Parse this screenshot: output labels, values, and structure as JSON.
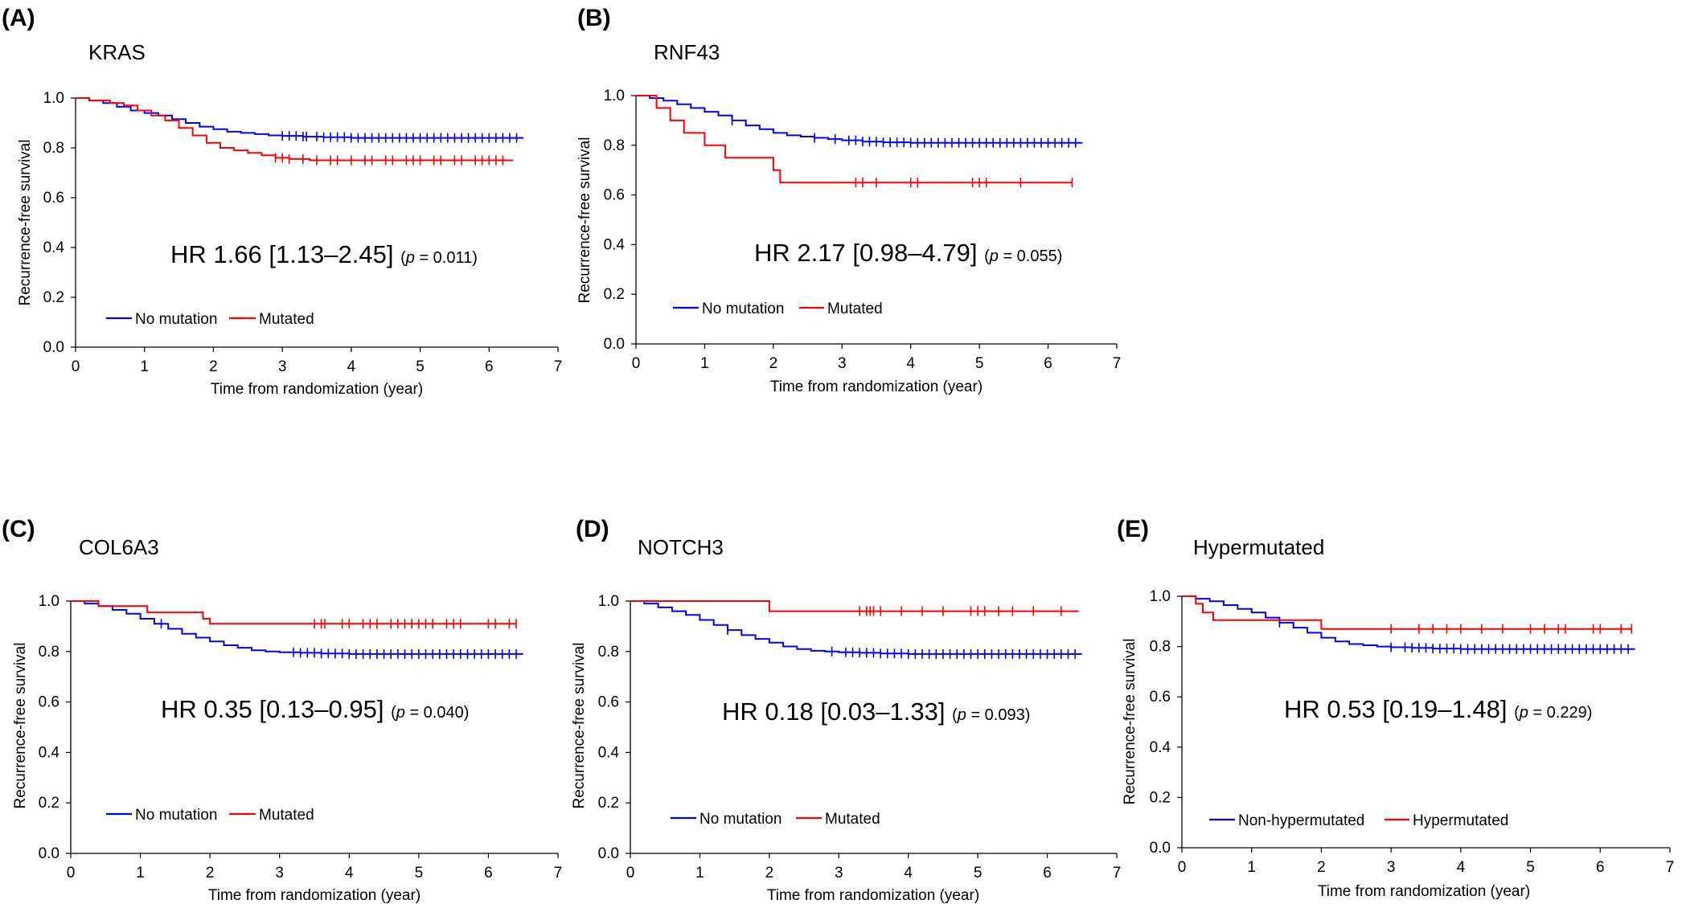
{
  "chart_data": [
    {
      "type": "line",
      "letter": "(A)",
      "title": "KRAS",
      "xlabel": "Time from randomization (year)",
      "ylabel": "Recurrence-free survival",
      "xlim": [
        0,
        7
      ],
      "ylim": [
        0,
        1
      ],
      "xticks": [
        "0",
        "1",
        "2",
        "3",
        "4",
        "5",
        "6",
        "7"
      ],
      "yticks": [
        "0.0",
        "0.2",
        "0.4",
        "0.6",
        "0.8",
        "1.0"
      ],
      "hr_text": "HR 1.66 [1.13–2.45]",
      "p_open": "(",
      "p_symbol": "p",
      "p_rest": " = 0.011)",
      "legend_position": "lower-left",
      "series": [
        {
          "name": "No mutation",
          "color": "#0000ff",
          "steps": [
            [
              0,
              1.0
            ],
            [
              0.2,
              0.99
            ],
            [
              0.4,
              0.98
            ],
            [
              0.6,
              0.965
            ],
            [
              0.8,
              0.95
            ],
            [
              1.0,
              0.94
            ],
            [
              1.2,
              0.93
            ],
            [
              1.4,
              0.915
            ],
            [
              1.6,
              0.9
            ],
            [
              1.8,
              0.885
            ],
            [
              2.0,
              0.875
            ],
            [
              2.2,
              0.865
            ],
            [
              2.4,
              0.86
            ],
            [
              2.6,
              0.855
            ],
            [
              2.8,
              0.85
            ],
            [
              3.0,
              0.848
            ],
            [
              3.3,
              0.845
            ],
            [
              3.6,
              0.843
            ],
            [
              4.0,
              0.84
            ],
            [
              6.5,
              0.84
            ]
          ],
          "censor_times": [
            3.0,
            3.1,
            3.2,
            3.3,
            3.35,
            3.5,
            3.6,
            3.7,
            3.8,
            3.9,
            4.0,
            4.1,
            4.2,
            4.3,
            4.4,
            4.5,
            4.6,
            4.7,
            4.8,
            4.9,
            5.0,
            5.1,
            5.2,
            5.3,
            5.4,
            5.5,
            5.6,
            5.7,
            5.8,
            5.9,
            6.0,
            6.1,
            6.2,
            6.3,
            6.4
          ]
        },
        {
          "name": "Mutated",
          "color": "#ff0000",
          "steps": [
            [
              0,
              1.0
            ],
            [
              0.2,
              0.99
            ],
            [
              0.5,
              0.98
            ],
            [
              0.7,
              0.97
            ],
            [
              0.9,
              0.95
            ],
            [
              1.1,
              0.93
            ],
            [
              1.3,
              0.91
            ],
            [
              1.5,
              0.88
            ],
            [
              1.7,
              0.85
            ],
            [
              1.9,
              0.82
            ],
            [
              2.1,
              0.8
            ],
            [
              2.3,
              0.79
            ],
            [
              2.5,
              0.78
            ],
            [
              2.7,
              0.77
            ],
            [
              2.9,
              0.76
            ],
            [
              3.1,
              0.755
            ],
            [
              3.4,
              0.75
            ],
            [
              6.35,
              0.75
            ]
          ],
          "censor_times": [
            2.9,
            3.0,
            3.1,
            3.3,
            3.5,
            3.7,
            3.8,
            4.0,
            4.2,
            4.3,
            4.5,
            4.6,
            4.8,
            4.9,
            5.0,
            5.2,
            5.3,
            5.5,
            5.6,
            5.8,
            5.9,
            6.0,
            6.1,
            6.2
          ]
        }
      ]
    },
    {
      "type": "line",
      "letter": "(B)",
      "title": "RNF43",
      "xlabel": "Time from randomization (year)",
      "ylabel": "Recurrence-free survival",
      "xlim": [
        0,
        7
      ],
      "ylim": [
        0,
        1
      ],
      "xticks": [
        "0",
        "1",
        "2",
        "3",
        "4",
        "5",
        "6",
        "7"
      ],
      "yticks": [
        "0.0",
        "0.2",
        "0.4",
        "0.6",
        "0.8",
        "1.0"
      ],
      "hr_text": "HR 2.17 [0.98–4.79]",
      "p_open": "(",
      "p_symbol": "p",
      "p_rest": " = 0.055)",
      "legend_position": "lower-left",
      "series": [
        {
          "name": "No mutation",
          "color": "#0000ff",
          "steps": [
            [
              0,
              1.0
            ],
            [
              0.2,
              0.99
            ],
            [
              0.4,
              0.98
            ],
            [
              0.6,
              0.965
            ],
            [
              0.8,
              0.95
            ],
            [
              1.0,
              0.935
            ],
            [
              1.2,
              0.92
            ],
            [
              1.4,
              0.9
            ],
            [
              1.6,
              0.88
            ],
            [
              1.8,
              0.865
            ],
            [
              2.0,
              0.85
            ],
            [
              2.2,
              0.84
            ],
            [
              2.4,
              0.835
            ],
            [
              2.6,
              0.83
            ],
            [
              2.8,
              0.825
            ],
            [
              3.0,
              0.82
            ],
            [
              3.3,
              0.815
            ],
            [
              3.6,
              0.812
            ],
            [
              4.0,
              0.81
            ],
            [
              6.5,
              0.81
            ]
          ],
          "censor_times": [
            1.4,
            2.6,
            2.9,
            3.1,
            3.2,
            3.3,
            3.4,
            3.5,
            3.6,
            3.7,
            3.8,
            3.9,
            4.0,
            4.1,
            4.2,
            4.3,
            4.4,
            4.5,
            4.6,
            4.7,
            4.8,
            4.9,
            5.0,
            5.1,
            5.2,
            5.3,
            5.4,
            5.5,
            5.6,
            5.7,
            5.8,
            5.9,
            6.0,
            6.1,
            6.2,
            6.3,
            6.4
          ]
        },
        {
          "name": "Mutated",
          "color": "#ff0000",
          "steps": [
            [
              0,
              1.0
            ],
            [
              0.3,
              0.95
            ],
            [
              0.5,
              0.9
            ],
            [
              0.7,
              0.85
            ],
            [
              1.0,
              0.8
            ],
            [
              1.3,
              0.75
            ],
            [
              2.0,
              0.7
            ],
            [
              2.1,
              0.65
            ],
            [
              6.35,
              0.65
            ]
          ],
          "censor_times": [
            3.2,
            3.3,
            3.5,
            4.0,
            4.1,
            4.9,
            5.0,
            5.1,
            5.6,
            6.35
          ]
        }
      ]
    },
    {
      "type": "line",
      "letter": "(C)",
      "title": "COL6A3",
      "xlabel": "Time from randomization (year)",
      "ylabel": "Recurrence-free survival",
      "xlim": [
        0,
        7
      ],
      "ylim": [
        0,
        1
      ],
      "xticks": [
        "0",
        "1",
        "2",
        "3",
        "4",
        "5",
        "6",
        "7"
      ],
      "yticks": [
        "0.0",
        "0.2",
        "0.4",
        "0.6",
        "0.8",
        "1.0"
      ],
      "hr_text": "HR 0.35 [0.13–0.95]",
      "p_open": "(",
      "p_symbol": "p",
      "p_rest": " = 0.040)",
      "legend_position": "lower-left",
      "series": [
        {
          "name": "No mutation",
          "color": "#0000ff",
          "steps": [
            [
              0,
              1.0
            ],
            [
              0.2,
              0.99
            ],
            [
              0.4,
              0.98
            ],
            [
              0.6,
              0.965
            ],
            [
              0.8,
              0.95
            ],
            [
              1.0,
              0.93
            ],
            [
              1.2,
              0.91
            ],
            [
              1.4,
              0.89
            ],
            [
              1.6,
              0.87
            ],
            [
              1.8,
              0.855
            ],
            [
              2.0,
              0.84
            ],
            [
              2.2,
              0.825
            ],
            [
              2.4,
              0.815
            ],
            [
              2.6,
              0.805
            ],
            [
              2.8,
              0.8
            ],
            [
              3.0,
              0.797
            ],
            [
              3.3,
              0.795
            ],
            [
              3.6,
              0.792
            ],
            [
              4.0,
              0.79
            ],
            [
              6.5,
              0.79
            ]
          ],
          "censor_times": [
            1.3,
            3.2,
            3.3,
            3.4,
            3.5,
            3.6,
            3.7,
            3.8,
            3.9,
            4.0,
            4.1,
            4.2,
            4.3,
            4.4,
            4.5,
            4.6,
            4.7,
            4.8,
            4.9,
            5.0,
            5.1,
            5.2,
            5.3,
            5.4,
            5.5,
            5.6,
            5.7,
            5.8,
            5.9,
            6.0,
            6.1,
            6.2,
            6.3,
            6.4
          ]
        },
        {
          "name": "Mutated",
          "color": "#ff0000",
          "steps": [
            [
              0,
              1.0
            ],
            [
              0.4,
              0.98
            ],
            [
              1.1,
              0.955
            ],
            [
              1.9,
              0.93
            ],
            [
              2.0,
              0.91
            ],
            [
              6.4,
              0.91
            ]
          ],
          "censor_times": [
            3.5,
            3.6,
            3.65,
            3.9,
            4.0,
            4.2,
            4.3,
            4.4,
            4.6,
            4.7,
            4.8,
            4.9,
            5.0,
            5.1,
            5.2,
            5.4,
            5.5,
            5.6,
            6.0,
            6.1,
            6.3,
            6.4
          ]
        }
      ]
    },
    {
      "type": "line",
      "letter": "(D)",
      "title": "NOTCH3",
      "xlabel": "Time from randomization (year)",
      "ylabel": "Recurrence-free survival",
      "xlim": [
        0,
        7
      ],
      "ylim": [
        0,
        1
      ],
      "xticks": [
        "0",
        "1",
        "2",
        "3",
        "4",
        "5",
        "6",
        "7"
      ],
      "yticks": [
        "0.0",
        "0.2",
        "0.4",
        "0.6",
        "0.8",
        "1.0"
      ],
      "hr_text": "HR 0.18 [0.03–1.33]",
      "p_open": "(",
      "p_symbol": "p",
      "p_rest": " = 0.093)",
      "legend_position": "lower-left",
      "series": [
        {
          "name": "No mutation",
          "color": "#0000ff",
          "steps": [
            [
              0,
              1.0
            ],
            [
              0.2,
              0.99
            ],
            [
              0.4,
              0.975
            ],
            [
              0.6,
              0.96
            ],
            [
              0.8,
              0.945
            ],
            [
              1.0,
              0.925
            ],
            [
              1.2,
              0.905
            ],
            [
              1.4,
              0.885
            ],
            [
              1.6,
              0.865
            ],
            [
              1.8,
              0.85
            ],
            [
              2.0,
              0.835
            ],
            [
              2.2,
              0.82
            ],
            [
              2.4,
              0.81
            ],
            [
              2.6,
              0.803
            ],
            [
              2.8,
              0.8
            ],
            [
              3.0,
              0.797
            ],
            [
              3.3,
              0.795
            ],
            [
              3.6,
              0.792
            ],
            [
              4.0,
              0.79
            ],
            [
              6.5,
              0.79
            ]
          ],
          "censor_times": [
            1.4,
            2.9,
            3.1,
            3.2,
            3.3,
            3.4,
            3.5,
            3.6,
            3.7,
            3.8,
            3.9,
            4.0,
            4.1,
            4.2,
            4.3,
            4.4,
            4.5,
            4.6,
            4.7,
            4.8,
            4.9,
            5.0,
            5.1,
            5.2,
            5.3,
            5.4,
            5.5,
            5.6,
            5.7,
            5.8,
            5.9,
            6.0,
            6.1,
            6.2,
            6.3,
            6.4
          ]
        },
        {
          "name": "Mutated",
          "color": "#ff0000",
          "steps": [
            [
              0,
              1.0
            ],
            [
              2.0,
              0.96
            ],
            [
              6.45,
              0.96
            ]
          ],
          "censor_times": [
            3.3,
            3.4,
            3.45,
            3.5,
            3.6,
            3.9,
            4.2,
            4.5,
            4.9,
            5.0,
            5.1,
            5.3,
            5.5,
            5.8,
            6.2
          ]
        }
      ]
    },
    {
      "type": "line",
      "letter": "(E)",
      "title": "Hypermutated",
      "xlabel": "Time from randomization (year)",
      "ylabel": "Recurrence-free survival",
      "xlim": [
        0,
        7
      ],
      "ylim": [
        0,
        1
      ],
      "xticks": [
        "0",
        "1",
        "2",
        "3",
        "4",
        "5",
        "6",
        "7"
      ],
      "yticks": [
        "0.0",
        "0.2",
        "0.4",
        "0.6",
        "0.8",
        "1.0"
      ],
      "hr_text": "HR 0.53 [0.19–1.48]",
      "p_open": "(",
      "p_symbol": "p",
      "p_rest": " = 0.229)",
      "legend_position": "lower-left",
      "series": [
        {
          "name": "Non-hypermutated",
          "color": "#0000ff",
          "steps": [
            [
              0,
              1.0
            ],
            [
              0.2,
              0.99
            ],
            [
              0.4,
              0.98
            ],
            [
              0.6,
              0.965
            ],
            [
              0.8,
              0.95
            ],
            [
              1.0,
              0.935
            ],
            [
              1.2,
              0.915
            ],
            [
              1.4,
              0.895
            ],
            [
              1.6,
              0.875
            ],
            [
              1.8,
              0.855
            ],
            [
              2.0,
              0.835
            ],
            [
              2.2,
              0.82
            ],
            [
              2.4,
              0.81
            ],
            [
              2.6,
              0.805
            ],
            [
              2.8,
              0.8
            ],
            [
              3.0,
              0.797
            ],
            [
              3.3,
              0.795
            ],
            [
              3.6,
              0.792
            ],
            [
              4.0,
              0.79
            ],
            [
              6.5,
              0.79
            ]
          ],
          "censor_times": [
            1.4,
            3.0,
            3.2,
            3.3,
            3.4,
            3.5,
            3.6,
            3.7,
            3.8,
            3.9,
            4.0,
            4.1,
            4.2,
            4.3,
            4.4,
            4.5,
            4.6,
            4.7,
            4.8,
            4.9,
            5.0,
            5.1,
            5.2,
            5.3,
            5.4,
            5.5,
            5.6,
            5.7,
            5.8,
            5.9,
            6.0,
            6.1,
            6.2,
            6.3,
            6.4
          ]
        },
        {
          "name": "Hypermutated",
          "color": "#ff0000",
          "steps": [
            [
              0,
              1.0
            ],
            [
              0.2,
              0.97
            ],
            [
              0.3,
              0.935
            ],
            [
              0.45,
              0.905
            ],
            [
              1.2,
              0.905
            ],
            [
              2.0,
              0.87
            ],
            [
              6.45,
              0.87
            ]
          ],
          "censor_times": [
            3.0,
            3.4,
            3.6,
            3.8,
            4.0,
            4.3,
            4.6,
            5.0,
            5.2,
            5.4,
            5.5,
            5.9,
            6.0,
            6.3,
            6.45
          ]
        }
      ]
    }
  ]
}
